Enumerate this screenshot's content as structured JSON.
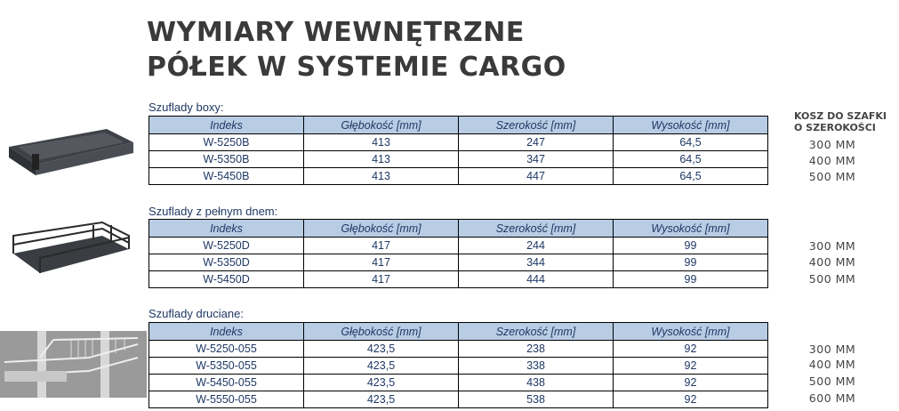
{
  "title": {
    "line1": "WYMIARY WEWNĘTRZNE",
    "line2": "PÓŁEK W SYSTEMIE CARGO"
  },
  "side_header": {
    "line1": "KOSZ DO SZAFKI",
    "line2": "O SZEROKOŚCI"
  },
  "columns": [
    "Indeks",
    "Głębokość [mm]",
    "Szerokość [mm]",
    "Wysokość [mm]"
  ],
  "sections": [
    {
      "label": "Szuflady boxy:",
      "rows": [
        [
          "W-5250B",
          "413",
          "247",
          "64,5"
        ],
        [
          "W-5350B",
          "413",
          "347",
          "64,5"
        ],
        [
          "W-5450B",
          "413",
          "447",
          "64,5"
        ]
      ],
      "cabinet": [
        "300 MM",
        "400 MM",
        "500 MM"
      ]
    },
    {
      "label": "Szuflady z pełnym dnem:",
      "rows": [
        [
          "W-5250D",
          "417",
          "244",
          "99"
        ],
        [
          "W-5350D",
          "417",
          "344",
          "99"
        ],
        [
          "W-5450D",
          "417",
          "444",
          "99"
        ]
      ],
      "cabinet": [
        "300 MM",
        "400 MM",
        "500 MM"
      ]
    },
    {
      "label": "Szuflady druciane:",
      "rows": [
        [
          "W-5250-055",
          "423,5",
          "238",
          "92"
        ],
        [
          "W-5350-055",
          "423,5",
          "338",
          "92"
        ],
        [
          "W-5450-055",
          "423,5",
          "438",
          "92"
        ],
        [
          "W-5550-055",
          "423,5",
          "538",
          "92"
        ]
      ],
      "cabinet": [
        "300 MM",
        "400 MM",
        "500 MM",
        "600 MM"
      ]
    }
  ]
}
